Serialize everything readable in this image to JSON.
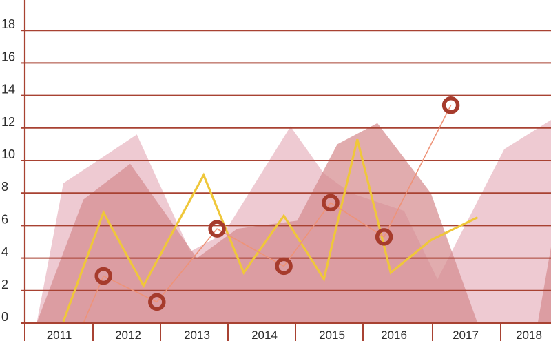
{
  "chart_data": {
    "type": "area",
    "title": "",
    "xlabel": "",
    "ylabel": "",
    "ylim": [
      0,
      19
    ],
    "y_ticks": [
      0,
      2,
      4,
      6,
      8,
      10,
      12,
      14,
      16,
      18
    ],
    "x_ticks": [
      "2011",
      "2012",
      "2013",
      "2014",
      "2015",
      "2016",
      "2017",
      "2018"
    ],
    "grid": true,
    "legend": "none",
    "colors": {
      "grid": "#a84232",
      "area_light": "#e3a9b6",
      "area_mid": "#d68c8f",
      "area_back": "#ddb3a5",
      "yellow_line": "#efc73a",
      "marker_line": "#ee9378",
      "marker": "#a63b2c"
    },
    "series": [
      {
        "type": "area",
        "x": [
          2010.6,
          2011.0,
          2012.1,
          2012.9,
          2013.4,
          2014.4,
          2014.9,
          2015.3,
          2016.1,
          2016.6,
          2017.6,
          2018.3,
          2018.3
        ],
        "values": [
          0.0,
          8.6,
          11.6,
          4.4,
          5.5,
          12.1,
          9.2,
          8.0,
          6.9,
          2.7,
          10.7,
          12.5,
          0.0
        ]
      },
      {
        "type": "area",
        "x": [
          2010.6,
          2011.3,
          2012.0,
          2013.0,
          2013.6,
          2014.5,
          2015.1,
          2015.7,
          2016.5,
          2017.2,
          2017.6,
          2018.1,
          2018.5,
          2018.5
        ],
        "values": [
          0.0,
          7.6,
          9.8,
          4.0,
          5.8,
          6.3,
          11.0,
          12.3,
          8.0,
          0.0,
          0.0,
          0.0,
          9.4,
          0.0
        ]
      },
      {
        "type": "line",
        "x": [
          2011.0,
          2011.6,
          2012.2,
          2013.1,
          2013.7,
          2014.3,
          2014.9,
          2015.4,
          2015.9,
          2016.5,
          2017.2
        ],
        "values": [
          0.1,
          6.8,
          2.3,
          9.1,
          3.1,
          6.6,
          2.7,
          11.3,
          3.1,
          5.1,
          6.5
        ]
      },
      {
        "type": "line-markers",
        "x": [
          2011.3,
          2011.6,
          2012.4,
          2013.3,
          2014.3,
          2015.0,
          2015.8,
          2016.8
        ],
        "values": [
          0.0,
          2.9,
          1.3,
          5.8,
          3.5,
          7.4,
          5.3,
          13.4
        ]
      }
    ]
  }
}
